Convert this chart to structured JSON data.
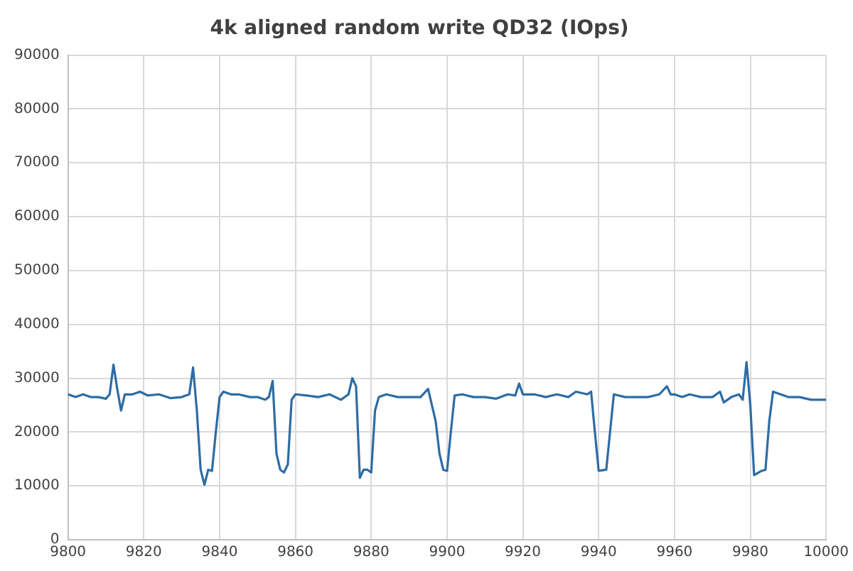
{
  "chart_data": {
    "type": "line",
    "title": "4k aligned random write QD32 (IOps)",
    "x": [
      9800,
      9802,
      9804,
      9806,
      9808,
      9810,
      9811,
      9812,
      9813,
      9814,
      9815,
      9817,
      9819,
      9821,
      9824,
      9827,
      9830,
      9832,
      9833,
      9834,
      9835,
      9836,
      9837,
      9838,
      9839,
      9840,
      9841,
      9843,
      9845,
      9848,
      9850,
      9852,
      9853,
      9854,
      9855,
      9856,
      9857,
      9858,
      9859,
      9860,
      9863,
      9866,
      9869,
      9872,
      9874,
      9875,
      9876,
      9877,
      9878,
      9879,
      9880,
      9881,
      9882,
      9884,
      9887,
      9890,
      9893,
      9895,
      9896,
      9897,
      9898,
      9899,
      9900,
      9901,
      9902,
      9904,
      9907,
      9910,
      9913,
      9916,
      9918,
      9919,
      9920,
      9923,
      9926,
      9929,
      9932,
      9934,
      9937,
      9938,
      9939,
      9940,
      9942,
      9943,
      9944,
      9947,
      9950,
      9953,
      9956,
      9958,
      9959,
      9960,
      9962,
      9964,
      9967,
      9970,
      9972,
      9973,
      9975,
      9977,
      9978,
      9979,
      9980,
      9981,
      9983,
      9984,
      9985,
      9986,
      9988,
      9990,
      9993,
      9996,
      9999,
      10000
    ],
    "series": [
      {
        "color": "#2e6ca4",
        "values": [
          27000,
          26500,
          27000,
          26500,
          26500,
          26200,
          27000,
          32500,
          28000,
          24000,
          27000,
          27000,
          27500,
          26800,
          27000,
          26300,
          26500,
          27000,
          32000,
          24000,
          13000,
          10200,
          13000,
          12800,
          20000,
          26500,
          27500,
          27000,
          27000,
          26500,
          26500,
          26000,
          26500,
          29500,
          16000,
          13000,
          12500,
          14000,
          26000,
          27000,
          26800,
          26500,
          27000,
          26000,
          27000,
          30000,
          28500,
          11500,
          13000,
          13000,
          12500,
          24000,
          26500,
          27000,
          26500,
          26500,
          26500,
          28000,
          25000,
          22000,
          16000,
          13000,
          12800,
          20000,
          26800,
          27000,
          26500,
          26500,
          26200,
          27000,
          26800,
          29000,
          27000,
          27000,
          26500,
          27000,
          26500,
          27500,
          27000,
          27500,
          20000,
          12800,
          13000,
          20000,
          27000,
          26500,
          26500,
          26500,
          27000,
          28500,
          27000,
          27000,
          26500,
          27000,
          26500,
          26500,
          27500,
          25500,
          26500,
          27000,
          26000,
          33000,
          25000,
          12000,
          12800,
          13000,
          22000,
          27500,
          27000,
          26500,
          26500,
          26000,
          26000,
          26000
        ]
      }
    ],
    "xlim": [
      9800,
      10000
    ],
    "xticks": [
      9800,
      9820,
      9840,
      9860,
      9880,
      9900,
      9920,
      9940,
      9960,
      9980,
      10000
    ],
    "ylim": [
      0,
      90000
    ],
    "yticks": [
      0,
      10000,
      20000,
      30000,
      40000,
      50000,
      60000,
      70000,
      80000,
      90000
    ],
    "grid": true,
    "legend": false,
    "marker": "none",
    "line_style": "solid"
  }
}
